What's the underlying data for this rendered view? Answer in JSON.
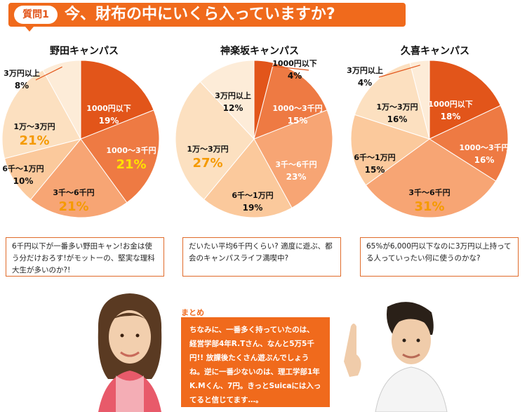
{
  "question": {
    "badge": "質問1",
    "title": "今、財布の中にいくら入っていますか?"
  },
  "colors": {
    "banner": "#f06a1c",
    "slice_dark": "#e2551a",
    "slice_mid": "#ee7a43",
    "slice_light": "#f7a574",
    "slice_pale": "#fbc99c",
    "slice_cream": "#fce0c0",
    "highlight_yellow": "#ffe100",
    "highlight_orange": "#f59a00"
  },
  "chart_data": [
    {
      "type": "pie",
      "title": "野田キャンパス",
      "slices": [
        {
          "label": "1000円以下",
          "value": 19
        },
        {
          "label": "1000〜3千円",
          "value": 21
        },
        {
          "label": "3千〜6千円",
          "value": 21
        },
        {
          "label": "6千〜1万円",
          "value": 10
        },
        {
          "label": "1万〜3万円",
          "value": 21
        },
        {
          "label": "3万円以上",
          "value": 8
        }
      ]
    },
    {
      "type": "pie",
      "title": "神楽坂キャンパス",
      "slices": [
        {
          "label": "1000円以下",
          "value": 4
        },
        {
          "label": "1000〜3千円",
          "value": 15
        },
        {
          "label": "3千〜6千円",
          "value": 23
        },
        {
          "label": "6千〜1万円",
          "value": 19
        },
        {
          "label": "1万〜3万円",
          "value": 27
        },
        {
          "label": "3万円以上",
          "value": 12
        }
      ]
    },
    {
      "type": "pie",
      "title": "久喜キャンパス",
      "slices": [
        {
          "label": "1000円以下",
          "value": 18
        },
        {
          "label": "1000〜3千円",
          "value": 16
        },
        {
          "label": "3千〜6千円",
          "value": 31
        },
        {
          "label": "6千〜1万円",
          "value": 15
        },
        {
          "label": "1万〜3万円",
          "value": 16
        },
        {
          "label": "3万円以上",
          "value": 4
        }
      ]
    }
  ],
  "comments": [
    "6千円以下が一番多い野田キャン!お金は使う分だけおろす!がモットーの、堅実な理科大生が多いのか?!",
    "だいたい平均6千円くらい? 適度に遊ぶ、都会のキャンパスライフ満喫中?",
    "65%が6,000円以下なのに3万円以上持ってる人っていったい何に使うのかな?"
  ],
  "summary": {
    "label": "まとめ",
    "text": "ちなみに、一番多く持っていたのは、経営学部4年R.Tさん、なんと5万5千円!! 放課後たくさん遊ぶんでしょうね。逆に一番少ないのは、理工学部1年K.Mくん、7円。きっとSuicaには入ってると信じてます…。"
  }
}
